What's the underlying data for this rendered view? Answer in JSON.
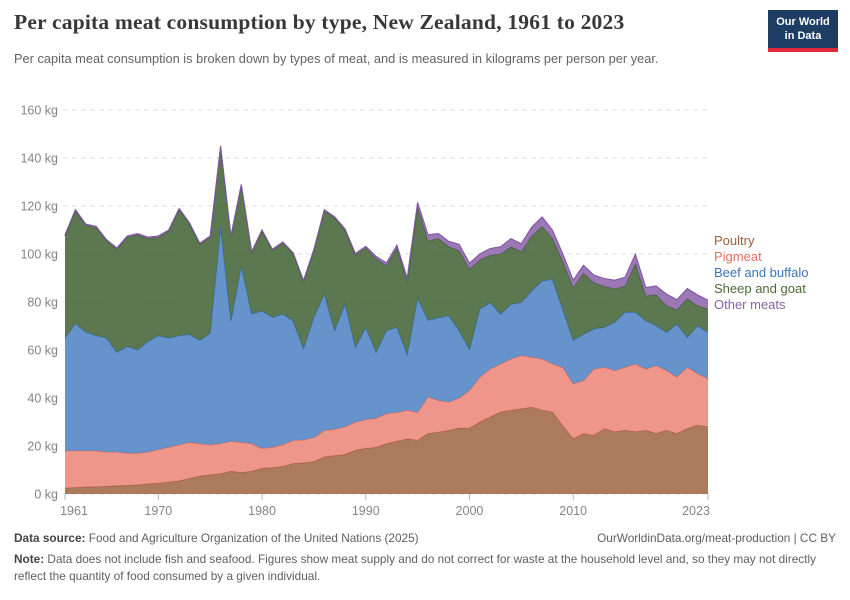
{
  "header": {
    "title": "Per capita meat consumption by type, New Zealand, 1961 to 2023",
    "subtitle": "Per capita meat consumption is broken down by types of meat, and is measured in kilograms per person per year.",
    "logo": {
      "line1": "Our World",
      "line2": "in Data"
    },
    "logo_colors": {
      "background": "#1d3d63",
      "underline": "#e0293b"
    }
  },
  "chart_data": {
    "type": "area",
    "stacked": true,
    "title": "Per capita meat consumption by type, New Zealand, 1961 to 2023",
    "xlabel": "",
    "ylabel": "kilograms per person per year",
    "ylim": [
      0,
      160
    ],
    "grid": "dashed-horizontal",
    "legend_position": "right-edge-of-plot",
    "x": [
      1961,
      1962,
      1963,
      1964,
      1965,
      1966,
      1967,
      1968,
      1969,
      1970,
      1971,
      1972,
      1973,
      1974,
      1975,
      1976,
      1977,
      1978,
      1979,
      1980,
      1981,
      1982,
      1983,
      1984,
      1985,
      1986,
      1987,
      1988,
      1989,
      1990,
      1991,
      1992,
      1993,
      1994,
      1995,
      1996,
      1997,
      1998,
      1999,
      2000,
      2001,
      2002,
      2003,
      2004,
      2005,
      2006,
      2007,
      2008,
      2009,
      2010,
      2011,
      2012,
      2013,
      2014,
      2015,
      2016,
      2017,
      2018,
      2019,
      2020,
      2021,
      2022,
      2023
    ],
    "series": [
      {
        "name": "Poultry",
        "color": "#a36d4d",
        "line": "#9b5f3b",
        "label_color": "#9c5f3e",
        "values": [
          2.5,
          2.7,
          3,
          3,
          3.2,
          3.4,
          3.6,
          3.8,
          4.2,
          4.5,
          5,
          5.5,
          6.5,
          7.5,
          8,
          8.5,
          9.5,
          9,
          9.5,
          10.7,
          11,
          11.5,
          12.7,
          13,
          13.5,
          15.5,
          16,
          16.5,
          18.3,
          19,
          19.5,
          21,
          22,
          23,
          22.4,
          25.2,
          25.8,
          26.6,
          27.5,
          27.5,
          30,
          32.1,
          34.2,
          34.9,
          35.5,
          36.2,
          34.9,
          34.2,
          28.5,
          23,
          25.2,
          24.5,
          27.3,
          25.9,
          26.6,
          25.9,
          26.6,
          25.2,
          26.6,
          25.2,
          27.3,
          28.7,
          28
        ]
      },
      {
        "name": "Pigmeat",
        "color": "#ec8b7d",
        "line": "#e8705d",
        "label_color": "#e2715e",
        "values": [
          15.5,
          15.3,
          15,
          15,
          14.3,
          14.1,
          13.4,
          13.2,
          13.3,
          14,
          14.5,
          15,
          15,
          13.5,
          12.5,
          12.5,
          12.5,
          12.5,
          11.5,
          8.3,
          8.5,
          9,
          9.7,
          9.5,
          10,
          11,
          11,
          11.5,
          11.7,
          12,
          12,
          12.5,
          12,
          11.9,
          11.6,
          15.2,
          13.2,
          11.7,
          12.5,
          15.7,
          18.7,
          20,
          20,
          21.4,
          22.2,
          20.8,
          21.4,
          20,
          24.2,
          22.9,
          22.1,
          27.6,
          25.5,
          25.5,
          26.2,
          28.3,
          25.5,
          28.3,
          24.9,
          23.5,
          25.5,
          21.4,
          20
        ]
      },
      {
        "name": "Beef and buffalo",
        "color": "#5787c6",
        "line": "#3d79c0",
        "label_color": "#3b76bb",
        "values": [
          47,
          53,
          49.5,
          48,
          47.5,
          41.5,
          44.5,
          43,
          46,
          47.5,
          45.5,
          45.5,
          45,
          43,
          46.5,
          90,
          50,
          73.5,
          54,
          57.3,
          54.1,
          54.5,
          49.6,
          38,
          50.1,
          56.8,
          41.1,
          51.1,
          31.1,
          38.4,
          27.5,
          34.6,
          35.5,
          23.1,
          47.5,
          32,
          34.4,
          36,
          28.1,
          17,
          28.3,
          27.7,
          20.7,
          22.8,
          22.1,
          27.6,
          32.5,
          35.3,
          24,
          18.1,
          19.3,
          16.7,
          16.7,
          20.1,
          22.9,
          21.5,
          20.1,
          16.6,
          15.8,
          22.1,
          12.5,
          20,
          19.3
        ]
      },
      {
        "name": "Sheep and goat",
        "color": "#49693e",
        "line": "#3e5f33",
        "label_color": "#4b6a33",
        "values": [
          42.5,
          47,
          44.5,
          45,
          40.5,
          43,
          45.5,
          48,
          43,
          41,
          44.5,
          52.5,
          46,
          40,
          40,
          33.5,
          35,
          33.5,
          25.5,
          33.2,
          27.9,
          29.5,
          28,
          28,
          27.9,
          34.7,
          46.9,
          30.9,
          38.4,
          33.1,
          39,
          27,
          33,
          30.6,
          38,
          33,
          33.1,
          28.7,
          33.4,
          33.5,
          20.5,
          19.7,
          25.1,
          23.9,
          21.2,
          22.9,
          22.7,
          17,
          20.2,
          22,
          25.4,
          19.2,
          17,
          14,
          10.9,
          20.3,
          10.3,
          12.9,
          11.2,
          6,
          16.1,
          8.4,
          9.8
        ]
      },
      {
        "name": "Other meats",
        "color": "#9269ae",
        "line": "#8157a3",
        "label_color": "#8a63a8",
        "values": [
          0.5,
          0.5,
          0.5,
          0.5,
          0.5,
          0.5,
          0.5,
          0.5,
          0.5,
          0.5,
          0.5,
          0.5,
          0.5,
          0.5,
          0.5,
          0.5,
          0.5,
          0.5,
          0.5,
          0.5,
          0.5,
          0.5,
          0.5,
          0.5,
          0.5,
          0.5,
          0.5,
          0.5,
          0.7,
          0.7,
          1,
          1.2,
          1.2,
          1.4,
          2,
          2.6,
          2,
          2.3,
          2.5,
          2.5,
          2.5,
          2.8,
          3,
          3.4,
          3.3,
          3.7,
          3.9,
          3.5,
          3.2,
          3.1,
          3.3,
          3.2,
          3.3,
          3.6,
          3.7,
          3.9,
          3.5,
          3.7,
          4.8,
          4.2,
          4.2,
          4.4,
          3.6
        ]
      }
    ],
    "yticks": [
      {
        "value": 0,
        "label": "0 kg"
      },
      {
        "value": 20,
        "label": "20 kg"
      },
      {
        "value": 40,
        "label": "40 kg"
      },
      {
        "value": 60,
        "label": "60 kg"
      },
      {
        "value": 80,
        "label": "80 kg"
      },
      {
        "value": 100,
        "label": "100 kg"
      },
      {
        "value": 120,
        "label": "120 kg"
      },
      {
        "value": 140,
        "label": "140 kg"
      },
      {
        "value": 160,
        "label": "160 kg"
      }
    ],
    "xticks": [
      {
        "value": 1961,
        "label": "1961"
      },
      {
        "value": 1970,
        "label": "1970"
      },
      {
        "value": 1980,
        "label": "1980"
      },
      {
        "value": 1990,
        "label": "1990"
      },
      {
        "value": 2000,
        "label": "2000"
      },
      {
        "value": 2010,
        "label": "2010"
      },
      {
        "value": 2023,
        "label": "2023"
      }
    ]
  },
  "footer": {
    "source_label": "Data source:",
    "source_text": " Food and Agriculture Organization of the United Nations (2025)",
    "url_text": "OurWorldinData.org/meat-production | CC BY",
    "note_label": "Note:",
    "note_text": " Data does not include fish and seafood. Figures show meat supply and do not correct for waste at the household level and, so they may not directly reflect the quantity of food consumed by a given individual."
  }
}
